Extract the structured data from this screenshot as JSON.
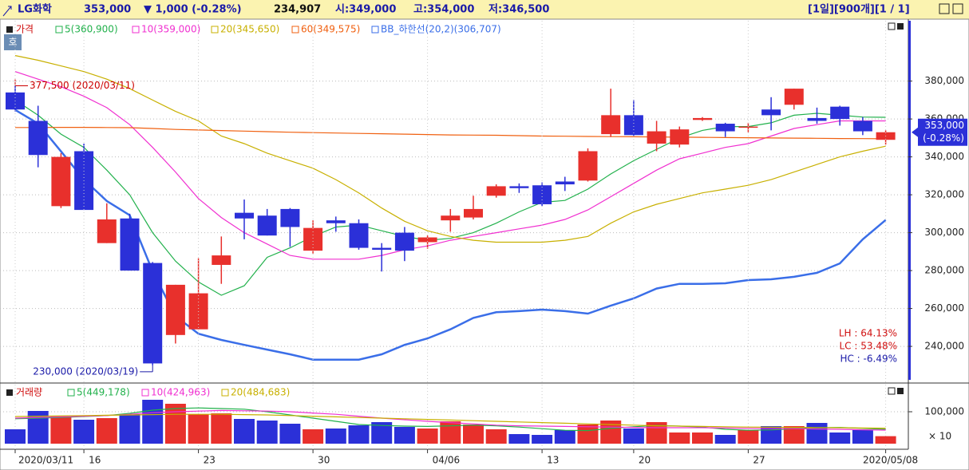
{
  "header": {
    "name": "LG화학",
    "price": "353,000",
    "change": "▼ 1,000 (-0.28%)",
    "volume": "234,907",
    "open": "시:349,000",
    "high": "고:354,000",
    "low": "저:346,500",
    "controls": "[1일][900개][1 / 1]"
  },
  "chart_data": [
    {
      "type": "candlestick",
      "legend_title": "가격",
      "top_button": "호",
      "categories": [
        "2020/03/11",
        null,
        null,
        "16",
        null,
        null,
        null,
        null,
        "23",
        null,
        null,
        null,
        null,
        "30",
        null,
        null,
        null,
        null,
        "04/06",
        null,
        null,
        null,
        null,
        "13",
        null,
        null,
        null,
        "20",
        null,
        null,
        null,
        null,
        "27",
        null,
        null,
        null,
        null,
        null,
        "2020/05/08"
      ],
      "open": [
        374000,
        359000,
        314000,
        343000,
        294500,
        307500,
        284000,
        246000,
        249000,
        283000,
        310500,
        309000,
        312500,
        290500,
        306500,
        305000,
        292000,
        300000,
        295000,
        306500,
        308000,
        319500,
        324500,
        325000,
        327000,
        327500,
        352000,
        362000,
        347000,
        346500,
        359500,
        357500,
        355500,
        365000,
        367500,
        360500,
        366500,
        359000,
        349000
      ],
      "high": [
        377500,
        367000,
        342000,
        347000,
        315500,
        310000,
        284500,
        272500,
        286500,
        298000,
        317500,
        312500,
        313000,
        306500,
        308500,
        307000,
        294500,
        303000,
        298500,
        312500,
        319500,
        325500,
        326000,
        326500,
        329500,
        344500,
        376000,
        370000,
        359000,
        356000,
        361000,
        358000,
        358000,
        371500,
        376000,
        366000,
        367000,
        361000,
        354000
      ],
      "low": [
        364000,
        334500,
        313000,
        312000,
        294500,
        280000,
        230000,
        241500,
        249000,
        273000,
        296500,
        298500,
        292500,
        289000,
        300500,
        291000,
        279500,
        285000,
        291500,
        300500,
        307000,
        318500,
        321000,
        314000,
        322000,
        327000,
        350500,
        351000,
        343000,
        345000,
        359000,
        350500,
        353000,
        354000,
        365000,
        357500,
        356500,
        351500,
        346500
      ],
      "close": [
        365000,
        341000,
        340000,
        312000,
        307000,
        280000,
        231000,
        272500,
        268000,
        288000,
        307500,
        298500,
        303000,
        302500,
        305000,
        292000,
        291000,
        290500,
        297500,
        309000,
        312500,
        324500,
        323500,
        315000,
        325500,
        343000,
        362000,
        351500,
        353500,
        354500,
        360500,
        353500,
        356000,
        362000,
        376000,
        359000,
        360000,
        353500,
        353000
      ],
      "up_color": "#e8302c",
      "down_color": "#2b30d8",
      "series": [
        {
          "name": "5(360,900)",
          "color": "#22b14c",
          "values": [
            370000,
            362000,
            352000,
            345000,
            333000,
            320000,
            300000,
            285000,
            274000,
            267000,
            272000,
            287000,
            292000,
            298000,
            303000,
            304000,
            301000,
            298000,
            296000,
            297000,
            300000,
            305000,
            311000,
            316000,
            317000,
            323000,
            331000,
            338000,
            344000,
            350000,
            354000,
            356000,
            356000,
            358000,
            362000,
            363000,
            362000,
            361000,
            360900
          ]
        },
        {
          "name": "10(359,000)",
          "color": "#f030d0",
          "values": [
            385000,
            381000,
            377000,
            372000,
            366000,
            357000,
            345000,
            332000,
            318000,
            308000,
            300000,
            294000,
            288000,
            286000,
            286000,
            286000,
            288000,
            291000,
            293000,
            296000,
            298000,
            300000,
            302000,
            304000,
            307000,
            312000,
            319000,
            326000,
            333000,
            339000,
            342000,
            345000,
            347000,
            351000,
            355000,
            357000,
            359000,
            359000,
            359000
          ]
        },
        {
          "name": "20(345,650)",
          "color": "#c8b000",
          "values": [
            393500,
            391000,
            388000,
            385000,
            381000,
            376000,
            370000,
            364000,
            359000,
            351000,
            347000,
            342000,
            338000,
            334000,
            328000,
            321000,
            313000,
            306000,
            301000,
            298000,
            296000,
            295000,
            295000,
            295000,
            296000,
            298000,
            305000,
            311000,
            315000,
            318000,
            321000,
            323000,
            325000,
            328000,
            332000,
            336000,
            340000,
            343000,
            345650
          ]
        },
        {
          "name": "60(349,575)",
          "color": "#f06010",
          "values": [
            355500,
            355500,
            355600,
            355600,
            355500,
            355400,
            355000,
            354500,
            354200,
            353900,
            353600,
            353300,
            353000,
            352800,
            352600,
            352400,
            352200,
            352000,
            351800,
            351600,
            351500,
            351400,
            351200,
            351000,
            350900,
            350800,
            350700,
            350600,
            350500,
            350400,
            350300,
            350200,
            350100,
            350000,
            349900,
            349800,
            349700,
            349650,
            349575
          ]
        },
        {
          "name": "BB_하한선(20,2)(306,707)",
          "color": "#3a6ee8",
          "values": [
            364800,
            357600,
            342900,
            328100,
            316700,
            309200,
            279600,
            256000,
            246700,
            243400,
            240800,
            238300,
            235800,
            233000,
            233000,
            233000,
            235800,
            240800,
            244200,
            249000,
            255000,
            258000,
            258600,
            259400,
            258600,
            257300,
            261500,
            265300,
            270500,
            273000,
            273000,
            273300,
            275000,
            275400,
            276700,
            278800,
            283800,
            296500,
            306707
          ]
        }
      ],
      "ylim": [
        221500,
        411000
      ],
      "yticks": [
        {
          "value": 240000,
          "label": "240,000"
        },
        {
          "value": 260000,
          "label": "260,000"
        },
        {
          "value": 280000,
          "label": "280,000"
        },
        {
          "value": 300000,
          "label": "300,000"
        },
        {
          "value": 320000,
          "label": "320,000"
        },
        {
          "value": 340000,
          "label": "340,000"
        },
        {
          "value": 360000,
          "label": "360,000"
        },
        {
          "value": 380000,
          "label": "380,000"
        }
      ],
      "grid": true,
      "high_label": "377,500 (2020/03/11)",
      "low_label": "230,000 (2020/03/19)",
      "price_label": "353,000",
      "change_label": "(-0.28%)",
      "stats": [
        "LH : 64.13%",
        "LC : 53.48%",
        "HC : -6.49%"
      ]
    },
    {
      "type": "bar",
      "legend_title": "거래량",
      "scale_label": "× 10",
      "up_color": "#e8302c",
      "down_color": "#2b30d8",
      "values": [
        45000,
        102500,
        87500,
        75000,
        80000,
        92500,
        137500,
        125000,
        92500,
        95000,
        77500,
        72500,
        62500,
        45000,
        47500,
        57500,
        67500,
        52500,
        47500,
        70000,
        60000,
        45000,
        30000,
        27500,
        42500,
        60000,
        72500,
        47500,
        67500,
        35000,
        35000,
        27500,
        42500,
        55000,
        55000,
        65000,
        35000,
        42500,
        23490.7
      ],
      "series": [
        {
          "name": "5(449,178)",
          "color": "#22b14c",
          "values": [
            78000,
            80000,
            82000,
            85000,
            88000,
            95000,
            105000,
            110000,
            112000,
            110000,
            108000,
            100000,
            90000,
            80000,
            70000,
            60000,
            57000,
            55000,
            54000,
            56000,
            58000,
            56000,
            52000,
            47000,
            42000,
            41000,
            48000,
            53000,
            57000,
            55000,
            52000,
            45000,
            42000,
            43000,
            47000,
            50000,
            51000,
            48000,
            44917.8
          ]
        },
        {
          "name": "10(424,963)",
          "color": "#f030d0",
          "values": [
            80000,
            82000,
            84000,
            86000,
            88000,
            92000,
            97000,
            100000,
            102000,
            104000,
            103000,
            102000,
            100000,
            96000,
            92000,
            86000,
            80000,
            75000,
            70000,
            66000,
            62000,
            58000,
            56000,
            55000,
            54000,
            53000,
            52000,
            51000,
            50000,
            50000,
            50000,
            49000,
            48000,
            47000,
            47000,
            46000,
            45000,
            43500,
            42496.3
          ]
        },
        {
          "name": "20(484,683)",
          "color": "#c8b000",
          "values": [
            85000,
            86000,
            87000,
            88000,
            89000,
            90000,
            91000,
            92000,
            92000,
            92000,
            91000,
            90000,
            88000,
            86000,
            84000,
            82000,
            80000,
            78000,
            76000,
            74000,
            72000,
            70000,
            68000,
            66000,
            64000,
            62000,
            60000,
            58000,
            56000,
            55000,
            54000,
            53000,
            52000,
            51500,
            51000,
            50500,
            50000,
            49000,
            48468.3
          ]
        }
      ],
      "ylim": [
        0,
        175000
      ],
      "yticks": [
        {
          "value": 100000,
          "label": "100,000"
        }
      ],
      "grid": true
    }
  ]
}
